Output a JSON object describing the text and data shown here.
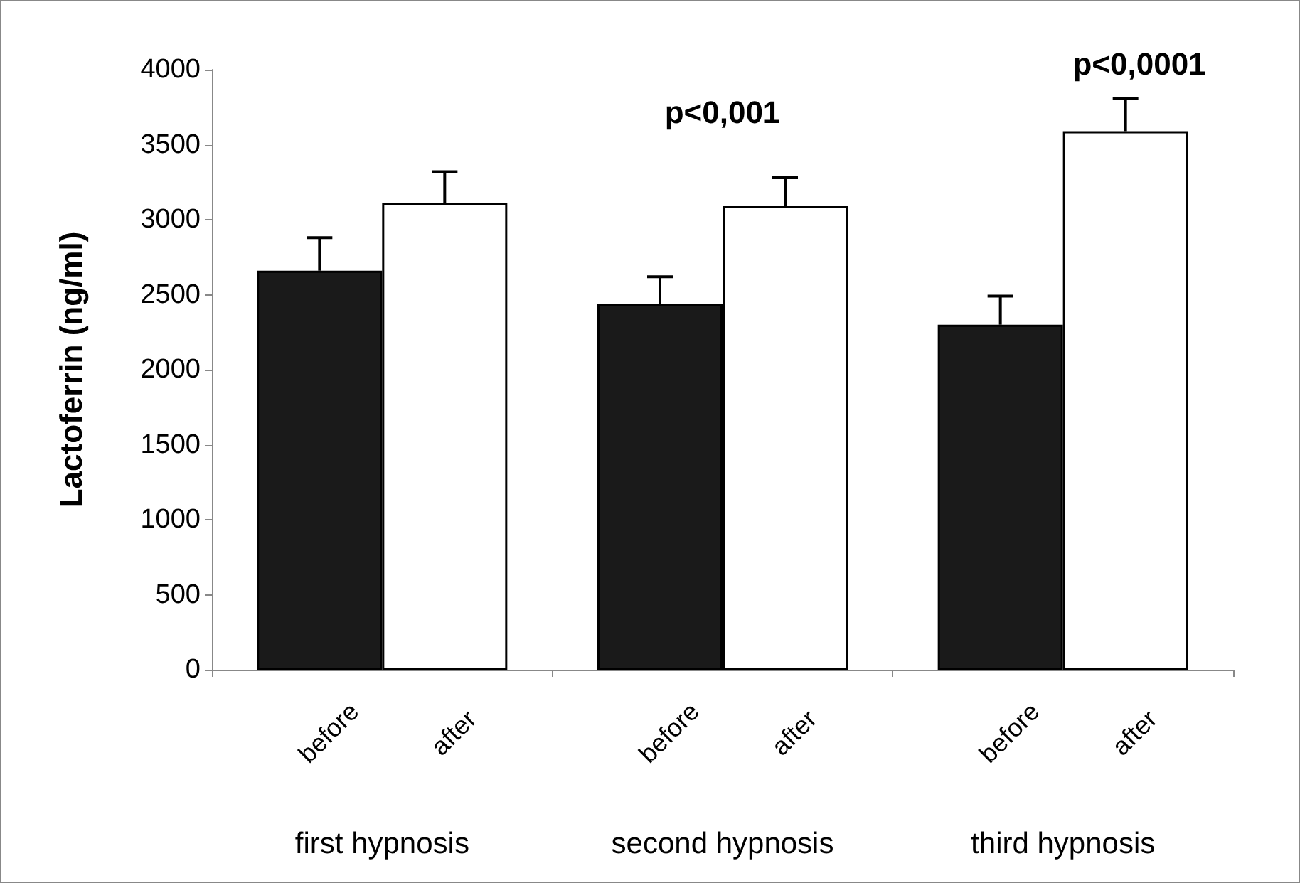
{
  "chart_data": {
    "type": "bar",
    "ylabel": "Lactoferrin (ng/ml)",
    "categories": [
      "first hypnosis",
      "second hypnosis",
      "third hypnosis"
    ],
    "series": [
      {
        "name": "before",
        "color": "#1a1a1a",
        "values": [
          2660,
          2440,
          2300
        ],
        "errors": [
          [
            2660,
            2880
          ],
          [
            2440,
            2620
          ],
          [
            2300,
            2490
          ]
        ]
      },
      {
        "name": "after",
        "color": "#ffffff",
        "values": [
          3110,
          3090,
          3590
        ],
        "errors": [
          [
            3110,
            3320
          ],
          [
            3090,
            3280
          ],
          [
            3590,
            3810
          ]
        ]
      }
    ],
    "annotations": [
      "p<0,001",
      "p<0,0001"
    ],
    "ylim": [
      0,
      4000
    ],
    "yticks": [
      0,
      500,
      1000,
      1500,
      2000,
      2500,
      3000,
      3500,
      4000
    ],
    "grid": false,
    "legend": false
  }
}
